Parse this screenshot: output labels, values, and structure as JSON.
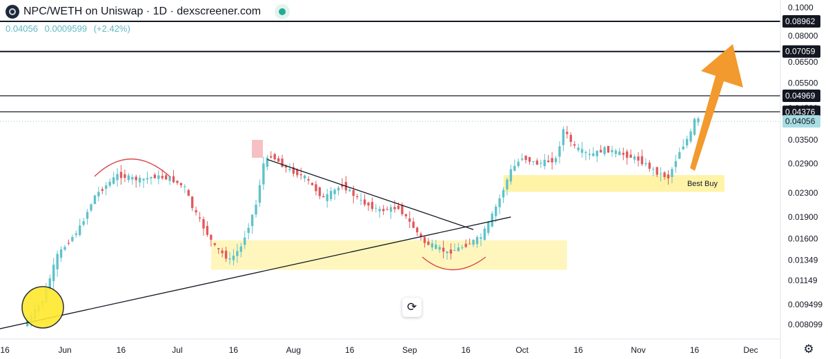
{
  "header": {
    "title": "NPC/WETH on Uniswap · 1D · dexscreener.com",
    "price": "0.04056",
    "change": "0.0009599",
    "change_pct": "(+2.42%)"
  },
  "annotation_label": "Best Buy",
  "colors": {
    "up": "#5fc2c9",
    "down": "#e2585c",
    "zone": "#fff3a8",
    "arrow": "#f29a2e",
    "price_badge": "#a8dde4"
  },
  "icons": {
    "reset": "reset-icon",
    "settings": "gear-icon"
  },
  "chart_data": {
    "type": "candlestick",
    "scale": "log",
    "y_ticks": [
      "0.1000",
      "0.08000",
      "0.06500",
      "0.05500",
      "0.04500",
      "0.03500",
      "0.02900",
      "0.02300",
      "0.01900",
      "0.01600",
      "0.01349",
      "0.01149",
      "0.009499",
      "0.008099"
    ],
    "x_ticks": [
      "16",
      "Jun",
      "16",
      "Jul",
      "16",
      "Aug",
      "16",
      "Sep",
      "16",
      "Oct",
      "16",
      "Nov",
      "16",
      "Dec"
    ],
    "level_lines": [
      {
        "value": 0.08962,
        "label": "0.08962"
      },
      {
        "value": 0.07059,
        "label": "0.07059"
      },
      {
        "value": 0.04969,
        "label": "0.04969"
      },
      {
        "value": 0.04376,
        "label": "0.04376"
      }
    ],
    "current_price": {
      "value": 0.04056,
      "label": "0.04056"
    },
    "zones": [
      {
        "from": "Jul 10",
        "to": "Oct 13",
        "low": 0.0125,
        "high": 0.0158
      },
      {
        "from": "Sep 26",
        "to": "Nov 24",
        "low": 0.0232,
        "high": 0.0265,
        "label": "Best Buy"
      }
    ],
    "trendlines": [
      {
        "from": {
          "date": "May 10",
          "value": 0.0076
        },
        "to": {
          "date": "Sep 28",
          "value": 0.019
        }
      },
      {
        "from": {
          "date": "Jul 25",
          "value": 0.03
        },
        "to": {
          "date": "Sep 18",
          "value": 0.0172
        }
      }
    ]
  }
}
